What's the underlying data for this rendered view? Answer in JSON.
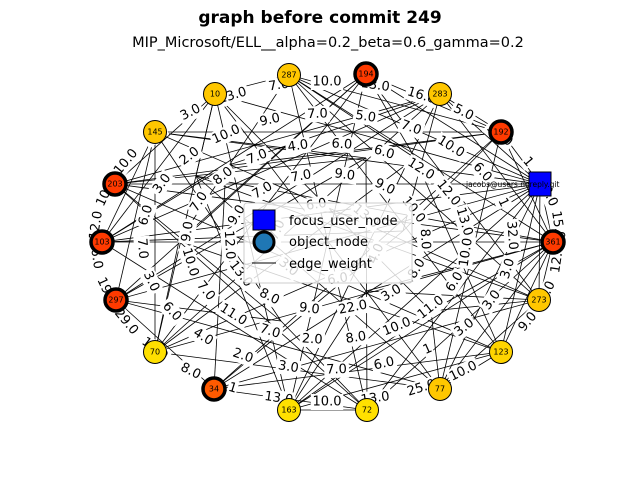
{
  "title": "graph before commit 249",
  "subtitle": "MIP_Microsoft/ELL__alpha=0.2_beta=0.6_gamma=0.2",
  "focus_user": {
    "label": "jacobs@users.noreply.git",
    "color": "#0000ff"
  },
  "legend": {
    "focus": "focus_user_node",
    "object": "object_node",
    "edge": "edge_weight"
  },
  "nodes": [
    {
      "id": "287",
      "color": "#ffc700",
      "thick": false
    },
    {
      "id": "194",
      "color": "#ff3a00",
      "thick": true
    },
    {
      "id": "283",
      "color": "#ffc700",
      "thick": false
    },
    {
      "id": "10",
      "color": "#ffc700",
      "thick": false
    },
    {
      "id": "192",
      "color": "#ff3a00",
      "thick": true
    },
    {
      "id": "145",
      "color": "#ffc700",
      "thick": false
    },
    {
      "id": "203",
      "color": "#ff3a00",
      "thick": true
    },
    {
      "id": "103",
      "color": "#ff3a00",
      "thick": true
    },
    {
      "id": "361",
      "color": "#ff3a00",
      "thick": true
    },
    {
      "id": "297",
      "color": "#ff3a00",
      "thick": true
    },
    {
      "id": "273",
      "color": "#ffc700",
      "thick": false
    },
    {
      "id": "70",
      "color": "#ffe000",
      "thick": false
    },
    {
      "id": "123",
      "color": "#ffd400",
      "thick": false
    },
    {
      "id": "34",
      "color": "#ff5a00",
      "thick": true
    },
    {
      "id": "77",
      "color": "#ffc700",
      "thick": false
    },
    {
      "id": "163",
      "color": "#ffe000",
      "thick": false
    },
    {
      "id": "72",
      "color": "#ffe000",
      "thick": false
    }
  ],
  "edge_labels": [
    "10.0",
    "13.0",
    "16.0",
    "5.0",
    "12.0",
    "1",
    "10.0",
    "15.0",
    "12.0",
    "4.0",
    "9.0",
    "8",
    "10.0",
    "25.0",
    "13.0",
    "10.0",
    "13.0",
    "1",
    "8.0",
    "12.0",
    "29.0",
    "19.0",
    "6.0",
    "12.0",
    "10.0",
    "10.0",
    "4.0",
    "3.0",
    "13.0",
    "7.0",
    "5.0",
    "7.0",
    "10.0",
    "6.0",
    "1",
    "32.0",
    "3.0",
    "3.0",
    "3.0",
    "1",
    "6.0",
    "7.0",
    "3.0",
    "2.0",
    "4.0",
    "6.0",
    "3.0",
    "7.0",
    "6.0",
    "3.0",
    "2.0",
    "10.0",
    "9.0",
    "7.0",
    "6.0",
    "12.0",
    "12.0",
    "13.0",
    "10.0",
    "6.0",
    "11.0",
    "10.0",
    "8.0",
    "2.0",
    "7.0",
    "11.0",
    "7.0",
    "10.0",
    "9.0",
    "7.0",
    "8.0",
    "7.0",
    "4.0",
    "6.0",
    "9.0",
    "10.0",
    "8.0",
    "8.0",
    "3.0",
    "22.0",
    "9.0",
    "8.0",
    "13.0",
    "12.0",
    "9.0",
    "7.0",
    "7.0",
    "9.0",
    "13.0",
    "4.0",
    "6.0",
    "3.0",
    "7.0",
    "6.0"
  ]
}
